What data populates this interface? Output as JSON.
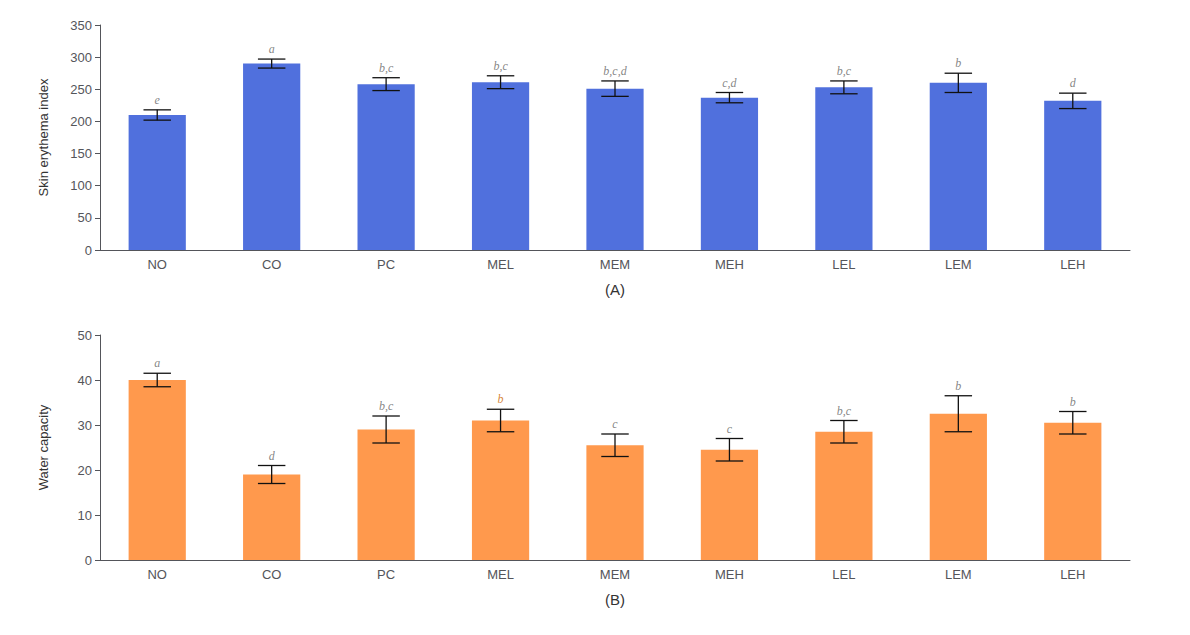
{
  "chart_data": [
    {
      "type": "bar",
      "categories": [
        "NO",
        "CO",
        "PC",
        "MEL",
        "MEM",
        "MEH",
        "LEL",
        "LEM",
        "LEH"
      ],
      "values": [
        210,
        290,
        258,
        261,
        251,
        237,
        253,
        260,
        232
      ],
      "errors": [
        8,
        7,
        10,
        10,
        12,
        8,
        10,
        15,
        12
      ],
      "annotations": [
        "e",
        "a",
        "b,c",
        "b,c",
        "b,c,d",
        "c,d",
        "b,c",
        "b",
        "d"
      ],
      "annotation_colors": [
        "#666666",
        "#666666",
        "#666666",
        "#666666",
        "#666666",
        "#666666",
        "#666666",
        "#666666",
        "#666666"
      ],
      "ylabel": "Skin erythema index",
      "xlabel": "(A)",
      "ylim": [
        0,
        350
      ],
      "yticks": [
        0,
        50,
        100,
        150,
        200,
        250,
        300,
        350
      ],
      "grid": false
    },
    {
      "type": "bar",
      "categories": [
        "NO",
        "CO",
        "PC",
        "MEL",
        "MEM",
        "MEH",
        "LEL",
        "LEM",
        "LEH"
      ],
      "values": [
        40,
        19,
        29,
        31,
        25.5,
        24.5,
        28.5,
        32.5,
        30.5
      ],
      "errors": [
        1.5,
        2,
        3,
        2.5,
        2.5,
        2.5,
        2.5,
        4,
        2.5
      ],
      "annotations": [
        "a",
        "d",
        "b,c",
        "b",
        "c",
        "c",
        "b,c",
        "b",
        "b"
      ],
      "annotation_colors": [
        "#666666",
        "#666666",
        "#666666",
        "#cc6600",
        "#666666",
        "#666666",
        "#666666",
        "#666666",
        "#666666"
      ],
      "ylabel": "Water capacity",
      "xlabel": "(B)",
      "ylim": [
        0,
        50
      ],
      "yticks": [
        0,
        10,
        20,
        30,
        40,
        50
      ],
      "grid": false
    }
  ]
}
